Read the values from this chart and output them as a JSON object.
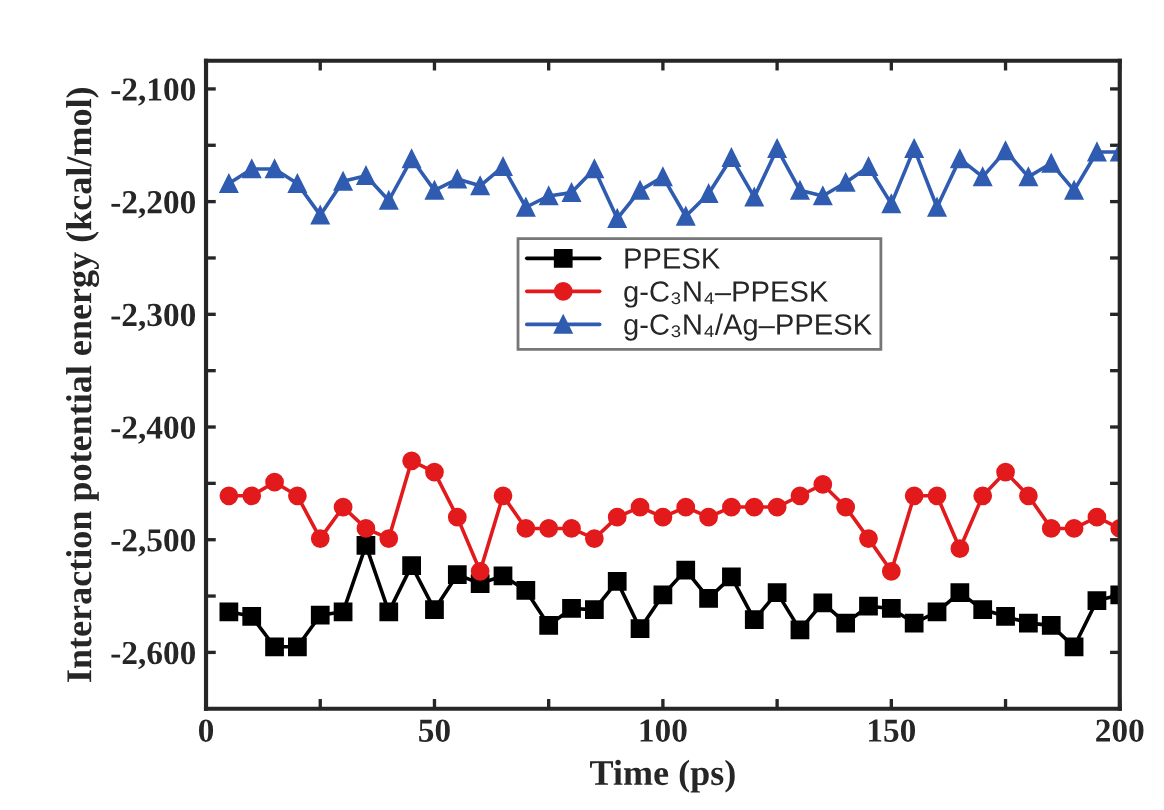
{
  "chart_data": {
    "type": "line",
    "xlabel": "Time (ps)",
    "ylabel": "Interaction potential energy (kcal/mol)",
    "x": [
      5,
      10,
      15,
      20,
      25,
      30,
      35,
      40,
      45,
      50,
      55,
      60,
      65,
      70,
      75,
      80,
      85,
      90,
      95,
      100,
      105,
      110,
      115,
      120,
      125,
      130,
      135,
      140,
      145,
      150,
      155,
      160,
      165,
      170,
      175,
      180,
      185,
      190,
      195,
      200
    ],
    "series": [
      {
        "name": "PPESK",
        "color": "#000000",
        "marker": "square",
        "values": [
          -2564,
          -2568,
          -2595,
          -2595,
          -2567,
          -2564,
          -2505,
          -2564,
          -2523,
          -2562,
          -2531,
          -2539,
          -2532,
          -2545,
          -2576,
          -2561,
          -2562,
          -2537,
          -2579,
          -2549,
          -2527,
          -2552,
          -2533,
          -2571,
          -2547,
          -2580,
          -2556,
          -2574,
          -2559,
          -2561,
          -2574,
          -2564,
          -2547,
          -2562,
          -2568,
          -2574,
          -2576,
          -2595,
          -2554,
          -2549
        ]
      },
      {
        "name": "g-C₃N₄–PPESK",
        "color": "#e31a1c",
        "marker": "circle",
        "values": [
          -2461,
          -2461,
          -2449,
          -2461,
          -2499,
          -2471,
          -2490,
          -2499,
          -2430,
          -2440,
          -2480,
          -2528,
          -2461,
          -2490,
          -2490,
          -2490,
          -2499,
          -2480,
          -2471,
          -2480,
          -2471,
          -2480,
          -2471,
          -2471,
          -2471,
          -2461,
          -2451,
          -2471,
          -2499,
          -2528,
          -2461,
          -2461,
          -2508,
          -2461,
          -2440,
          -2461,
          -2490,
          -2490,
          -2480,
          -2490
        ]
      },
      {
        "name": "g-C₃N₄/Ag–PPESK",
        "color": "#2f5cb0",
        "marker": "triangle",
        "values": [
          -2184,
          -2171,
          -2171,
          -2184,
          -2212,
          -2182,
          -2177,
          -2199,
          -2162,
          -2190,
          -2180,
          -2186,
          -2169,
          -2205,
          -2195,
          -2192,
          -2171,
          -2215,
          -2190,
          -2178,
          -2213,
          -2193,
          -2161,
          -2196,
          -2153,
          -2190,
          -2195,
          -2183,
          -2169,
          -2202,
          -2153,
          -2205,
          -2162,
          -2178,
          -2155,
          -2178,
          -2166,
          -2190,
          -2156,
          -2156
        ]
      }
    ],
    "xlim": [
      0,
      200
    ],
    "xticks": [
      0,
      {
        "value": 25,
        "label": null
      },
      50,
      {
        "value": 75,
        "label": null
      },
      100,
      {
        "value": 125,
        "label": null
      },
      150,
      {
        "value": 175,
        "label": null
      },
      200
    ],
    "ylim": [
      -2650,
      -2075
    ],
    "yticks": [
      {
        "value": -2600,
        "label": "-2,600"
      },
      {
        "value": -2550,
        "label": null
      },
      {
        "value": -2500,
        "label": "-2,500"
      },
      {
        "value": -2450,
        "label": null
      },
      {
        "value": -2400,
        "label": "-2,400"
      },
      {
        "value": -2350,
        "label": null
      },
      {
        "value": -2300,
        "label": "-2,300"
      },
      {
        "value": -2250,
        "label": null
      },
      {
        "value": -2200,
        "label": "-2,200"
      },
      {
        "value": -2150,
        "label": null
      },
      {
        "value": -2100,
        "label": "-2,100"
      }
    ],
    "legend": "center",
    "line_style": "solid",
    "grid": false
  }
}
